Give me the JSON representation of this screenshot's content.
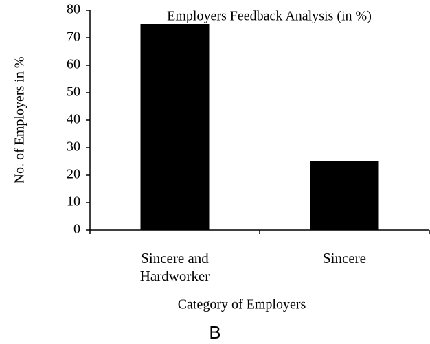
{
  "chart_data": {
    "type": "bar",
    "title": "Employers Feedback Analysis (in %)",
    "x_label": "Category of Employers",
    "y_label": "No. of Employers in %",
    "panel_label": "B",
    "categories": [
      "Sincere and Hardworker",
      "Sincere"
    ],
    "values": [
      75,
      25
    ],
    "color": "#000000",
    "ylim": [
      0,
      80
    ],
    "yticks": [
      0,
      10,
      20,
      30,
      40,
      50,
      60,
      70,
      80
    ],
    "grid": false
  }
}
